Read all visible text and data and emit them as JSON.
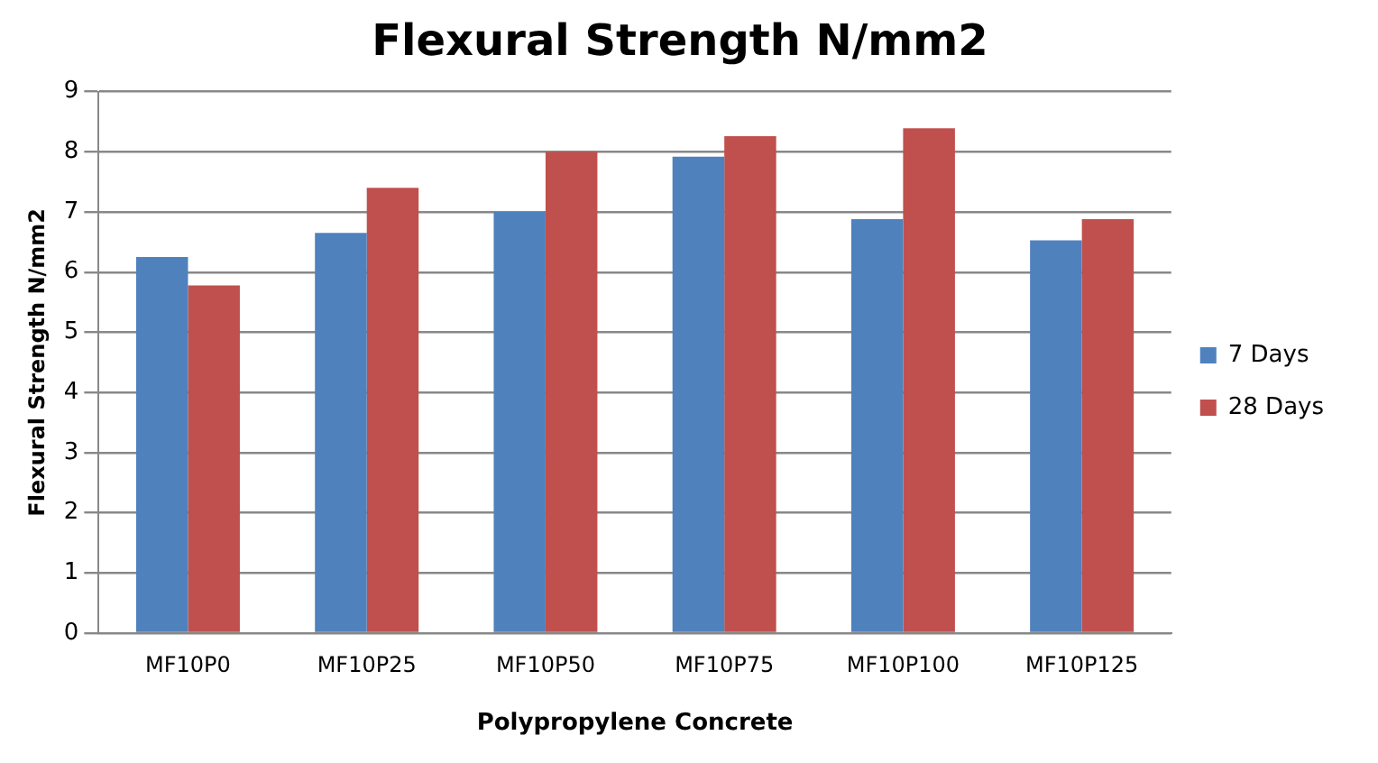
{
  "chart_data": {
    "type": "bar",
    "title": "Flexural Strength N/mm2",
    "xlabel": "Polypropylene Concrete",
    "ylabel": "Flexural Strength N/mm2",
    "categories": [
      "MF10P0",
      "MF10P25",
      "MF10P50",
      "MF10P75",
      "MF10P100",
      "MF10P125"
    ],
    "series": [
      {
        "name": "7 Days",
        "color": "#4f81bd",
        "values": [
          6.25,
          6.65,
          7.0,
          7.92,
          6.88,
          6.53
        ]
      },
      {
        "name": "28 Days",
        "color": "#c0504d",
        "values": [
          5.78,
          7.4,
          8.0,
          8.26,
          8.39,
          6.88
        ]
      }
    ],
    "ylim": [
      0,
      9
    ],
    "yticks": [
      0,
      1,
      2,
      3,
      4,
      5,
      6,
      7,
      8,
      9
    ],
    "grid": "y",
    "legend": "right"
  }
}
